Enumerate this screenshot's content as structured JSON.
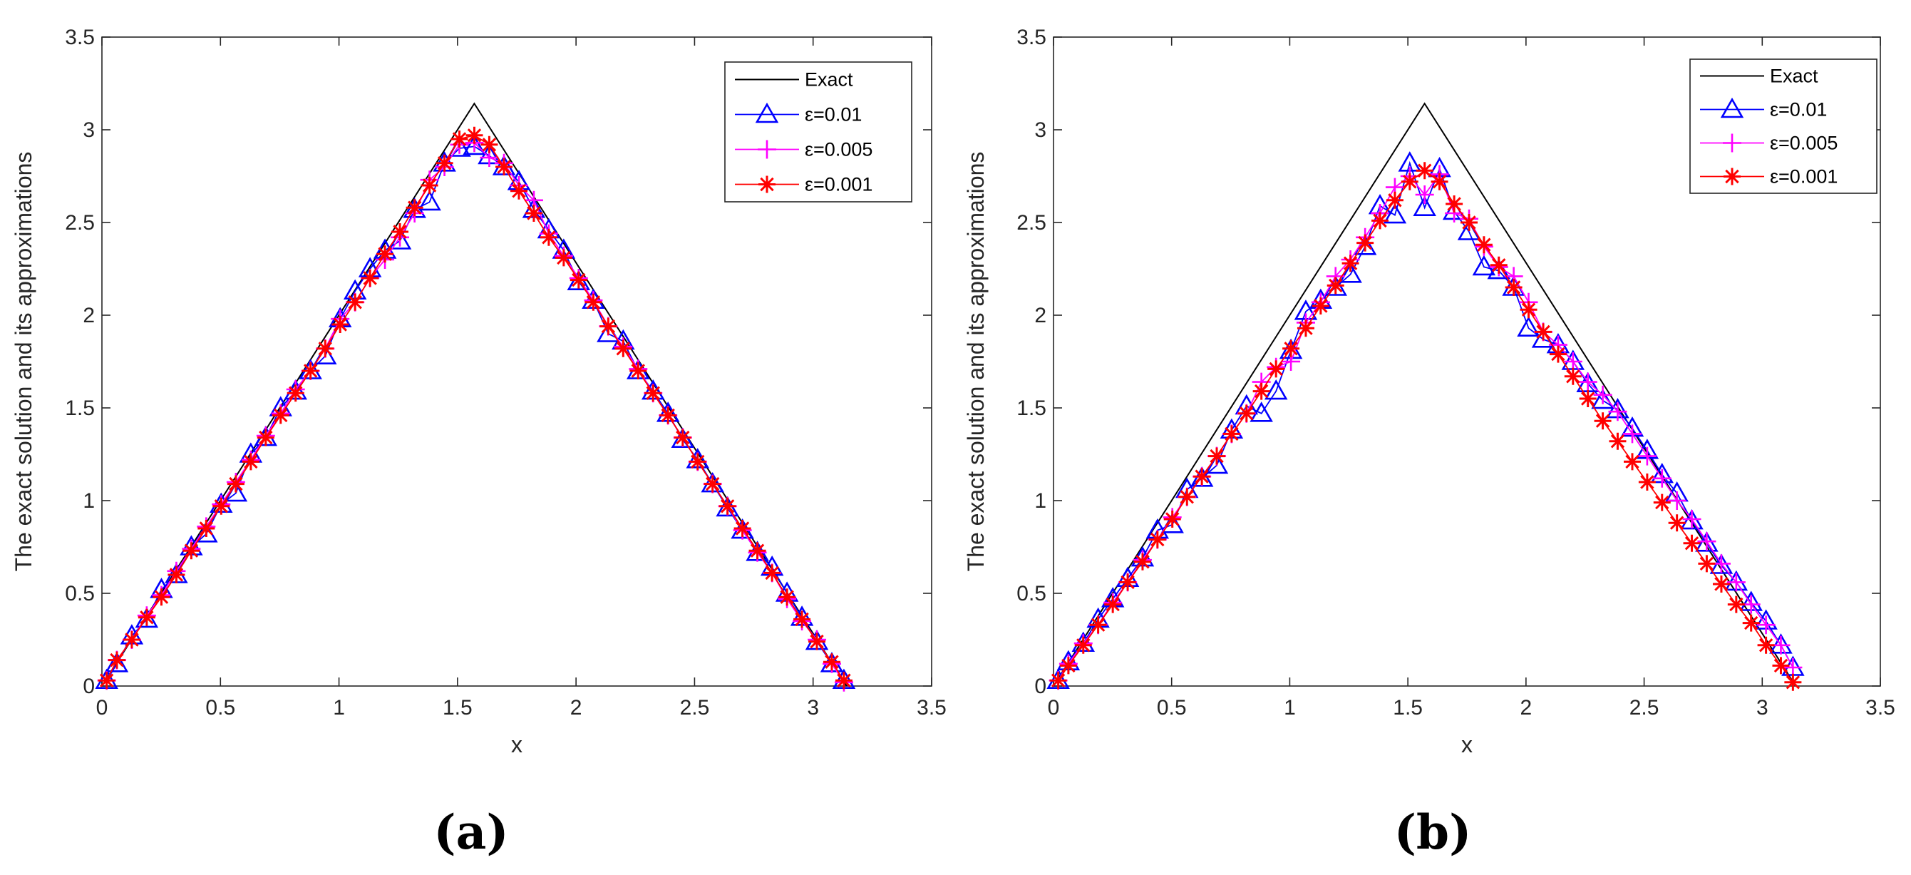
{
  "figure": {
    "panels": [
      "(a)",
      "(b)"
    ]
  },
  "chart_data": [
    {
      "type": "line",
      "panel_label": "(a)",
      "title": "",
      "xlabel": "x",
      "ylabel": "The exact solution and its approximations",
      "xlim": [
        0,
        3.5
      ],
      "ylim": [
        0,
        3.5
      ],
      "xticks": [
        "0",
        "0.5",
        "1",
        "1.5",
        "2",
        "2.5",
        "3",
        "3.5"
      ],
      "yticks": [
        "0",
        "0.5",
        "1",
        "1.5",
        "2",
        "2.5",
        "3",
        "3.5"
      ],
      "legend_position": "top-right",
      "grid": false,
      "series": [
        {
          "name": "Exact",
          "color": "#000000",
          "marker": "none",
          "x": [
            0,
            1.5708,
            3.1416
          ],
          "y": [
            0,
            3.1416,
            0
          ]
        },
        {
          "name": "ε=0.01",
          "color": "#0000ff",
          "marker": "triangle",
          "x": [
            0.02,
            0.063,
            0.126,
            0.189,
            0.251,
            0.314,
            0.377,
            0.44,
            0.503,
            0.565,
            0.628,
            0.691,
            0.754,
            0.817,
            0.88,
            0.942,
            1.005,
            1.068,
            1.131,
            1.194,
            1.257,
            1.319,
            1.382,
            1.445,
            1.508,
            1.571,
            1.634,
            1.696,
            1.759,
            1.822,
            1.885,
            1.948,
            2.011,
            2.073,
            2.136,
            2.199,
            2.262,
            2.325,
            2.388,
            2.45,
            2.513,
            2.576,
            2.639,
            2.702,
            2.765,
            2.827,
            2.89,
            2.953,
            3.016,
            3.079,
            3.13
          ],
          "y": [
            0.03,
            0.12,
            0.27,
            0.36,
            0.52,
            0.6,
            0.75,
            0.82,
            0.98,
            1.04,
            1.25,
            1.34,
            1.5,
            1.59,
            1.7,
            1.78,
            1.98,
            2.13,
            2.25,
            2.35,
            2.4,
            2.57,
            2.61,
            2.82,
            2.9,
            2.91,
            2.86,
            2.8,
            2.72,
            2.57,
            2.46,
            2.35,
            2.18,
            2.08,
            1.9,
            1.86,
            1.7,
            1.59,
            1.47,
            1.33,
            1.22,
            1.09,
            0.96,
            0.84,
            0.72,
            0.64,
            0.5,
            0.37,
            0.24,
            0.12,
            0.03
          ]
        },
        {
          "name": "ε=0.005",
          "color": "#ff00ff",
          "marker": "plus",
          "x": [
            0.02,
            0.063,
            0.126,
            0.189,
            0.251,
            0.314,
            0.377,
            0.44,
            0.503,
            0.565,
            0.628,
            0.691,
            0.754,
            0.817,
            0.88,
            0.942,
            1.005,
            1.068,
            1.131,
            1.194,
            1.257,
            1.319,
            1.382,
            1.445,
            1.508,
            1.571,
            1.634,
            1.696,
            1.759,
            1.822,
            1.885,
            1.948,
            2.011,
            2.073,
            2.136,
            2.199,
            2.262,
            2.325,
            2.388,
            2.45,
            2.513,
            2.576,
            2.639,
            2.702,
            2.765,
            2.827,
            2.89,
            2.953,
            3.016,
            3.079,
            3.13
          ],
          "y": [
            0.03,
            0.14,
            0.25,
            0.38,
            0.49,
            0.62,
            0.74,
            0.86,
            0.98,
            1.1,
            1.22,
            1.35,
            1.47,
            1.6,
            1.7,
            1.82,
            1.98,
            2.07,
            2.2,
            2.3,
            2.42,
            2.55,
            2.73,
            2.8,
            2.92,
            2.93,
            2.85,
            2.82,
            2.7,
            2.62,
            2.44,
            2.32,
            2.2,
            2.08,
            1.94,
            1.83,
            1.71,
            1.58,
            1.46,
            1.34,
            1.21,
            1.09,
            0.97,
            0.84,
            0.72,
            0.61,
            0.47,
            0.35,
            0.25,
            0.12,
            0.02
          ]
        },
        {
          "name": "ε=0.001",
          "color": "#ff0000",
          "marker": "asterisk",
          "x": [
            0.02,
            0.063,
            0.126,
            0.189,
            0.251,
            0.314,
            0.377,
            0.44,
            0.503,
            0.565,
            0.628,
            0.691,
            0.754,
            0.817,
            0.88,
            0.942,
            1.005,
            1.068,
            1.131,
            1.194,
            1.257,
            1.319,
            1.382,
            1.445,
            1.508,
            1.571,
            1.634,
            1.696,
            1.759,
            1.822,
            1.885,
            1.948,
            2.011,
            2.073,
            2.136,
            2.199,
            2.262,
            2.325,
            2.388,
            2.45,
            2.513,
            2.576,
            2.639,
            2.702,
            2.765,
            2.827,
            2.89,
            2.953,
            3.016,
            3.079,
            3.13
          ],
          "y": [
            0.03,
            0.14,
            0.25,
            0.37,
            0.48,
            0.6,
            0.73,
            0.85,
            0.97,
            1.09,
            1.21,
            1.34,
            1.46,
            1.58,
            1.7,
            1.82,
            1.95,
            2.07,
            2.2,
            2.33,
            2.45,
            2.58,
            2.7,
            2.82,
            2.95,
            2.97,
            2.92,
            2.8,
            2.67,
            2.55,
            2.42,
            2.31,
            2.19,
            2.07,
            1.94,
            1.82,
            1.7,
            1.58,
            1.46,
            1.34,
            1.21,
            1.09,
            0.97,
            0.85,
            0.73,
            0.61,
            0.48,
            0.36,
            0.24,
            0.13,
            0.03
          ]
        }
      ]
    },
    {
      "type": "line",
      "panel_label": "(b)",
      "title": "",
      "xlabel": "x",
      "ylabel": "The exact solution and its approximations",
      "xlim": [
        0,
        3.5
      ],
      "ylim": [
        0,
        3.5
      ],
      "xticks": [
        "0",
        "0.5",
        "1",
        "1.5",
        "2",
        "2.5",
        "3",
        "3.5"
      ],
      "yticks": [
        "0",
        "0.5",
        "1",
        "1.5",
        "2",
        "2.5",
        "3",
        "3.5"
      ],
      "legend_position": "top-right",
      "grid": false,
      "series": [
        {
          "name": "Exact",
          "color": "#000000",
          "marker": "none",
          "x": [
            0,
            1.5708,
            3.1416
          ],
          "y": [
            0,
            3.1416,
            0
          ]
        },
        {
          "name": "ε=0.01",
          "color": "#0000ff",
          "marker": "triangle",
          "x": [
            0.02,
            0.063,
            0.126,
            0.189,
            0.251,
            0.314,
            0.377,
            0.44,
            0.503,
            0.565,
            0.628,
            0.691,
            0.754,
            0.817,
            0.88,
            0.942,
            1.005,
            1.068,
            1.131,
            1.194,
            1.257,
            1.319,
            1.382,
            1.445,
            1.508,
            1.571,
            1.634,
            1.696,
            1.759,
            1.822,
            1.885,
            1.948,
            2.011,
            2.073,
            2.136,
            2.199,
            2.262,
            2.325,
            2.388,
            2.45,
            2.513,
            2.576,
            2.639,
            2.702,
            2.765,
            2.827,
            2.89,
            2.953,
            3.016,
            3.079,
            3.13
          ],
          "y": [
            0.03,
            0.13,
            0.23,
            0.36,
            0.47,
            0.58,
            0.69,
            0.84,
            0.87,
            1.06,
            1.12,
            1.19,
            1.38,
            1.51,
            1.47,
            1.59,
            1.81,
            2.02,
            2.08,
            2.15,
            2.22,
            2.37,
            2.59,
            2.54,
            2.82,
            2.58,
            2.79,
            2.56,
            2.45,
            2.26,
            2.24,
            2.15,
            1.93,
            1.87,
            1.84,
            1.75,
            1.63,
            1.54,
            1.49,
            1.39,
            1.27,
            1.14,
            1.04,
            0.89,
            0.77,
            0.65,
            0.56,
            0.45,
            0.35,
            0.22,
            0.1
          ]
        },
        {
          "name": "ε=0.005",
          "color": "#ff00ff",
          "marker": "plus",
          "x": [
            0.02,
            0.063,
            0.126,
            0.189,
            0.251,
            0.314,
            0.377,
            0.44,
            0.503,
            0.565,
            0.628,
            0.691,
            0.754,
            0.817,
            0.88,
            0.942,
            1.005,
            1.068,
            1.131,
            1.194,
            1.257,
            1.319,
            1.382,
            1.445,
            1.508,
            1.571,
            1.634,
            1.696,
            1.759,
            1.822,
            1.885,
            1.948,
            2.011,
            2.073,
            2.136,
            2.199,
            2.262,
            2.325,
            2.388,
            2.45,
            2.513,
            2.576,
            2.639,
            2.702,
            2.765,
            2.827,
            2.89,
            2.953,
            3.016,
            3.079,
            3.13
          ],
          "y": [
            0.03,
            0.12,
            0.23,
            0.33,
            0.45,
            0.56,
            0.68,
            0.79,
            0.91,
            1.02,
            1.13,
            1.24,
            1.36,
            1.47,
            1.64,
            1.72,
            1.75,
            1.96,
            2.07,
            2.21,
            2.3,
            2.42,
            2.55,
            2.69,
            2.75,
            2.65,
            2.76,
            2.55,
            2.52,
            2.37,
            2.26,
            2.21,
            2.07,
            1.91,
            1.84,
            1.75,
            1.64,
            1.57,
            1.48,
            1.36,
            1.24,
            1.12,
            1.0,
            0.9,
            0.78,
            0.66,
            0.56,
            0.44,
            0.33,
            0.22,
            0.1
          ]
        },
        {
          "name": "ε=0.001",
          "color": "#ff0000",
          "marker": "asterisk",
          "x": [
            0.02,
            0.063,
            0.126,
            0.189,
            0.251,
            0.314,
            0.377,
            0.44,
            0.503,
            0.565,
            0.628,
            0.691,
            0.754,
            0.817,
            0.88,
            0.942,
            1.005,
            1.068,
            1.131,
            1.194,
            1.257,
            1.319,
            1.382,
            1.445,
            1.508,
            1.571,
            1.634,
            1.696,
            1.759,
            1.822,
            1.885,
            1.948,
            2.011,
            2.073,
            2.136,
            2.199,
            2.262,
            2.325,
            2.388,
            2.45,
            2.513,
            2.576,
            2.639,
            2.702,
            2.765,
            2.827,
            2.89,
            2.953,
            3.016,
            3.079,
            3.13
          ],
          "y": [
            0.03,
            0.11,
            0.22,
            0.33,
            0.44,
            0.56,
            0.67,
            0.79,
            0.9,
            1.02,
            1.13,
            1.24,
            1.36,
            1.47,
            1.59,
            1.71,
            1.82,
            1.93,
            2.05,
            2.16,
            2.28,
            2.39,
            2.51,
            2.62,
            2.72,
            2.78,
            2.72,
            2.6,
            2.5,
            2.38,
            2.27,
            2.15,
            2.03,
            1.91,
            1.79,
            1.67,
            1.55,
            1.43,
            1.32,
            1.21,
            1.1,
            0.99,
            0.88,
            0.77,
            0.66,
            0.55,
            0.44,
            0.34,
            0.22,
            0.11,
            0.02
          ]
        }
      ]
    }
  ]
}
